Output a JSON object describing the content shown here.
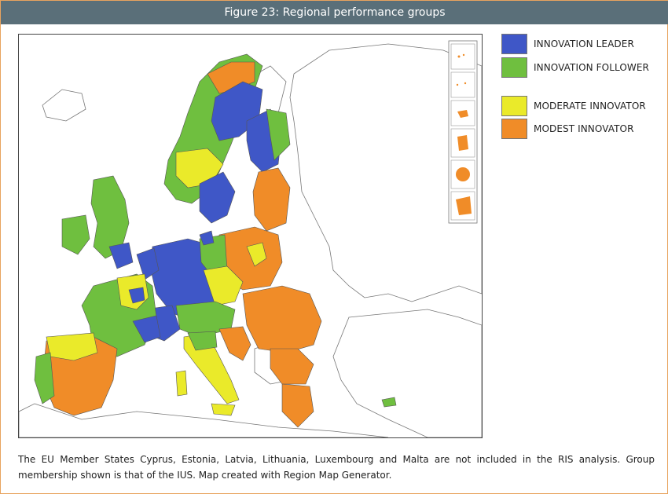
{
  "figure": {
    "title": "Figure 23: Regional performance groups"
  },
  "legend": {
    "items": [
      {
        "label": "INNOVATION LEADER",
        "color": "#3f57c7"
      },
      {
        "label": "INNOVATION FOLLOWER",
        "color": "#6fbf3f"
      },
      {
        "label": "MODERATE INNOVATOR",
        "color": "#eaea2a"
      },
      {
        "label": "MODEST INNOVATOR",
        "color": "#f08c28"
      }
    ]
  },
  "map": {
    "background_color": "#ffffff",
    "non_eu_color": "#ffffff",
    "border_color": "#666666",
    "inset_count": 6
  },
  "caption": "The EU Member States Cyprus, Estonia, Latvia, Lithuania, Luxembourg and Malta are not included in the RIS analysis. Group membership shown is that of the IUS. Map created with Region Map Generator."
}
